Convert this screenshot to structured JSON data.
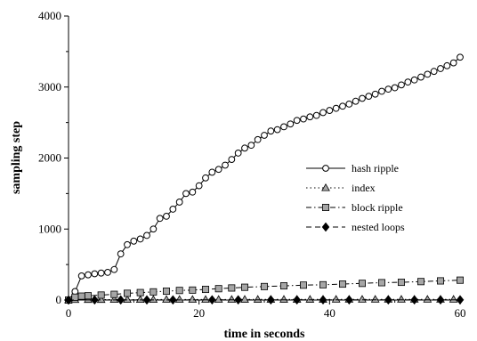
{
  "chart_data": {
    "type": "line",
    "title": "",
    "xlabel": "time in seconds",
    "ylabel": "sampling step",
    "xlim": [
      0,
      60
    ],
    "ylim": [
      0,
      4000
    ],
    "xticks": [
      0,
      20,
      40,
      60
    ],
    "yticks": [
      0,
      1000,
      2000,
      3000,
      4000
    ],
    "xtick_labels": [
      "0",
      "20",
      "40",
      "60"
    ],
    "ytick_labels": [
      "0",
      "1000",
      "2000",
      "3000",
      "4000"
    ],
    "grid": false,
    "legend_position": "right-middle",
    "series": [
      {
        "name": "hash ripple",
        "line": "solid",
        "marker": "circle-open",
        "x": [
          0,
          1,
          2,
          3,
          4,
          5,
          6,
          7,
          8,
          9,
          10,
          11,
          12,
          13,
          14,
          15,
          16,
          17,
          18,
          19,
          20,
          21,
          22,
          23,
          24,
          25,
          26,
          27,
          28,
          29,
          30,
          31,
          32,
          33,
          34,
          35,
          36,
          37,
          38,
          39,
          40,
          41,
          42,
          43,
          44,
          45,
          46,
          47,
          48,
          49,
          50,
          51,
          52,
          53,
          54,
          55,
          56,
          57,
          58,
          59,
          60
        ],
        "y": [
          0,
          120,
          340,
          355,
          370,
          380,
          390,
          430,
          650,
          780,
          830,
          860,
          910,
          1000,
          1150,
          1180,
          1280,
          1380,
          1500,
          1520,
          1610,
          1720,
          1800,
          1840,
          1900,
          1980,
          2070,
          2140,
          2180,
          2260,
          2320,
          2380,
          2400,
          2440,
          2480,
          2530,
          2550,
          2580,
          2600,
          2640,
          2670,
          2700,
          2730,
          2760,
          2800,
          2840,
          2870,
          2900,
          2940,
          2970,
          2990,
          3030,
          3070,
          3100,
          3140,
          3180,
          3220,
          3260,
          3300,
          3340,
          3420
        ]
      },
      {
        "name": "index",
        "line": "dotted",
        "marker": "triangle-gray",
        "x": [
          0,
          1,
          3,
          5,
          7,
          9,
          11,
          13,
          15,
          17,
          19,
          21,
          23,
          25,
          27,
          29,
          31,
          33,
          35,
          37,
          39,
          41,
          43,
          45,
          47,
          49,
          51,
          53,
          55,
          57,
          59
        ],
        "y": [
          0,
          5,
          6,
          6,
          7,
          7,
          7,
          7,
          8,
          8,
          8,
          8,
          8,
          8,
          9,
          9,
          9,
          9,
          9,
          9,
          9,
          10,
          10,
          10,
          10,
          10,
          10,
          10,
          10,
          10,
          10
        ]
      },
      {
        "name": "block ripple",
        "line": "dash-dot",
        "marker": "square-gray",
        "x": [
          0,
          1,
          2,
          3,
          5,
          7,
          9,
          11,
          13,
          15,
          17,
          19,
          21,
          23,
          25,
          27,
          30,
          33,
          36,
          39,
          42,
          45,
          48,
          51,
          54,
          57,
          60
        ],
        "y": [
          0,
          40,
          55,
          60,
          70,
          80,
          95,
          105,
          115,
          125,
          135,
          140,
          150,
          160,
          170,
          180,
          190,
          200,
          210,
          215,
          225,
          235,
          245,
          250,
          260,
          270,
          280
        ]
      },
      {
        "name": "nested loops",
        "line": "dashed",
        "marker": "diamond-filled",
        "x": [
          0,
          4,
          8,
          12,
          16,
          22,
          26,
          31,
          35,
          39,
          43,
          49,
          53,
          57,
          60
        ],
        "y": [
          0,
          2,
          2,
          2,
          2,
          3,
          3,
          3,
          3,
          3,
          3,
          3,
          3,
          3,
          3
        ]
      }
    ]
  }
}
